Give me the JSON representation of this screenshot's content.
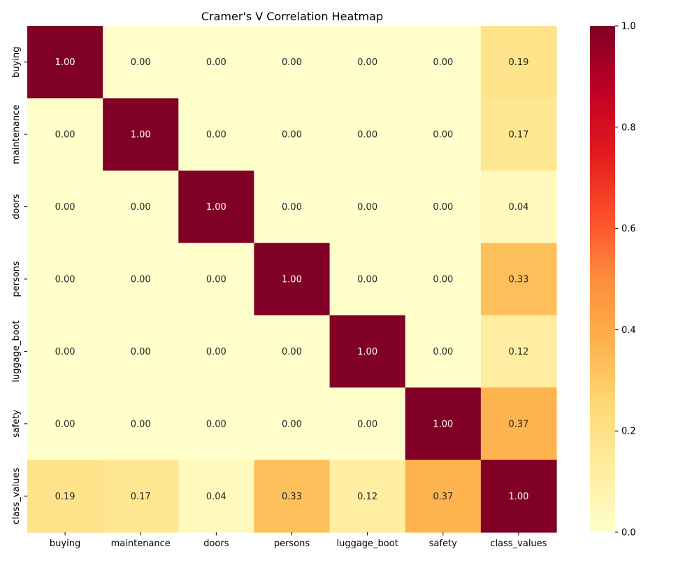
{
  "chart_data": {
    "type": "heatmap",
    "title": "Cramer's V Correlation Heatmap",
    "xlabel": "",
    "ylabel": "",
    "categories": [
      "buying",
      "maintenance",
      "doors",
      "persons",
      "luggage_boot",
      "safety",
      "class_values"
    ],
    "values": [
      [
        1.0,
        0.0,
        0.0,
        0.0,
        0.0,
        0.0,
        0.19
      ],
      [
        0.0,
        1.0,
        0.0,
        0.0,
        0.0,
        0.0,
        0.17
      ],
      [
        0.0,
        0.0,
        1.0,
        0.0,
        0.0,
        0.0,
        0.04
      ],
      [
        0.0,
        0.0,
        0.0,
        1.0,
        0.0,
        0.0,
        0.33
      ],
      [
        0.0,
        0.0,
        0.0,
        0.0,
        1.0,
        0.0,
        0.12
      ],
      [
        0.0,
        0.0,
        0.0,
        0.0,
        0.0,
        1.0,
        0.37
      ],
      [
        0.19,
        0.17,
        0.04,
        0.33,
        0.12,
        0.37,
        1.0
      ]
    ],
    "value_format": "0.00",
    "colorbar": {
      "range": [
        0.0,
        1.0
      ],
      "ticks": [
        "0.0",
        "0.2",
        "0.4",
        "0.6",
        "0.8",
        "1.0"
      ],
      "colormap": "YlOrRd",
      "colormap_stops": [
        "#ffffcc",
        "#ffeda0",
        "#fed976",
        "#feb24c",
        "#fd8d3c",
        "#fc4e2a",
        "#e31a1c",
        "#bd0026",
        "#800026"
      ]
    },
    "annotation_colors": {
      "dark_text": "#262626",
      "light_text": "#ffffff"
    }
  }
}
